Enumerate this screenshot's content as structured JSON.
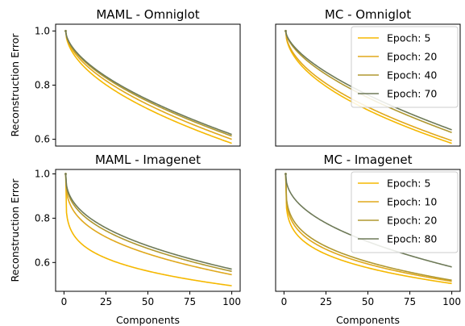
{
  "chart_data": [
    {
      "type": "line",
      "title": "MAML - Omniglot",
      "xlabel": "",
      "ylabel": "Reconstruction Error",
      "xlim": [
        -5,
        105
      ],
      "ylim": [
        0.575,
        1.025
      ],
      "yticks": [
        "0.6",
        "0.8",
        "1.0"
      ],
      "xticks": [],
      "legend": null,
      "series": [
        {
          "name": "Epoch: 5",
          "color": "#f5b800",
          "start": 1.0,
          "end": 0.585,
          "shape": 0.52
        },
        {
          "name": "Epoch: 20",
          "color": "#e0a81c",
          "start": 1.0,
          "end": 0.6,
          "shape": 0.55
        },
        {
          "name": "Epoch: 40",
          "color": "#b09830",
          "start": 1.0,
          "end": 0.612,
          "shape": 0.57
        },
        {
          "name": "Epoch: 70",
          "color": "#6e7a58",
          "start": 1.0,
          "end": 0.618,
          "shape": 0.58
        }
      ]
    },
    {
      "type": "line",
      "title": "MC - Omniglot",
      "xlabel": "",
      "ylabel": "",
      "xlim": [
        -5,
        105
      ],
      "ylim": [
        0.575,
        1.025
      ],
      "yticks": [],
      "xticks": [],
      "legend": "upper-right",
      "series": [
        {
          "name": "Epoch: 5",
          "color": "#f5b800",
          "start": 1.0,
          "end": 0.585,
          "shape": 0.5
        },
        {
          "name": "Epoch: 20",
          "color": "#e0a81c",
          "start": 1.0,
          "end": 0.595,
          "shape": 0.52
        },
        {
          "name": "Epoch: 40",
          "color": "#b09830",
          "start": 1.0,
          "end": 0.625,
          "shape": 0.6
        },
        {
          "name": "Epoch: 70",
          "color": "#6e7a58",
          "start": 1.0,
          "end": 0.635,
          "shape": 0.62
        }
      ]
    },
    {
      "type": "line",
      "title": "MAML - Imagenet",
      "xlabel": "Components",
      "ylabel": "Reconstruction Error",
      "xlim": [
        -5,
        105
      ],
      "ylim": [
        0.47,
        1.02
      ],
      "yticks": [
        "0.6",
        "0.8",
        "1.0"
      ],
      "xticks": [
        "0",
        "25",
        "50",
        "75",
        "100"
      ],
      "legend": null,
      "series": [
        {
          "name": "Epoch: 5",
          "color": "#f5b800",
          "start": 1.0,
          "end": 0.495,
          "shape": 0.2
        },
        {
          "name": "Epoch: 10",
          "color": "#e0a81c",
          "start": 1.0,
          "end": 0.545,
          "shape": 0.33
        },
        {
          "name": "Epoch: 20",
          "color": "#b09830",
          "start": 1.0,
          "end": 0.56,
          "shape": 0.38
        },
        {
          "name": "Epoch: 80",
          "color": "#6e7a58",
          "start": 1.0,
          "end": 0.57,
          "shape": 0.4
        }
      ]
    },
    {
      "type": "line",
      "title": "MC - Imagenet",
      "xlabel": "Components",
      "ylabel": "",
      "xlim": [
        -5,
        105
      ],
      "ylim": [
        0.47,
        1.02
      ],
      "yticks": [],
      "xticks": [
        "0",
        "25",
        "50",
        "75",
        "100"
      ],
      "legend": "upper-right",
      "series": [
        {
          "name": "Epoch: 5",
          "color": "#f5b800",
          "start": 1.0,
          "end": 0.505,
          "shape": 0.22
        },
        {
          "name": "Epoch: 10",
          "color": "#e0a81c",
          "start": 1.0,
          "end": 0.515,
          "shape": 0.25
        },
        {
          "name": "Epoch: 20",
          "color": "#b09830",
          "start": 1.0,
          "end": 0.52,
          "shape": 0.27
        },
        {
          "name": "Epoch: 80",
          "color": "#6e7a58",
          "start": 1.0,
          "end": 0.58,
          "shape": 0.45
        }
      ]
    }
  ]
}
